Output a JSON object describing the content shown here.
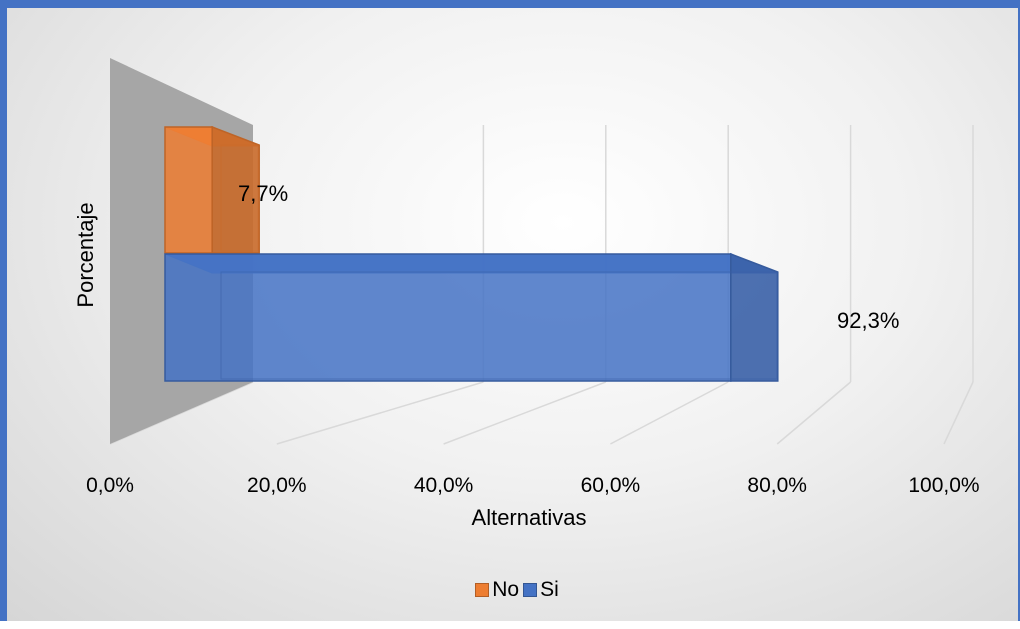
{
  "chart_data": {
    "type": "bar",
    "orientation": "horizontal",
    "three_d": true,
    "categories": [
      "No",
      "Si"
    ],
    "values": [
      7.7,
      92.3
    ],
    "data_labels": [
      "7,7%",
      "92,3%"
    ],
    "colors": [
      "#ed7d31",
      "#4472c4"
    ],
    "xlabel": "Alternativas",
    "ylabel": "Porcentaje",
    "xlim": [
      0,
      100
    ],
    "x_tick_labels": [
      "0,0%",
      "20,0%",
      "40,0%",
      "60,0%",
      "80,0%",
      "100,0%"
    ],
    "grid": true,
    "legend": {
      "position": "bottom",
      "entries": [
        "No",
        "Si"
      ]
    }
  }
}
